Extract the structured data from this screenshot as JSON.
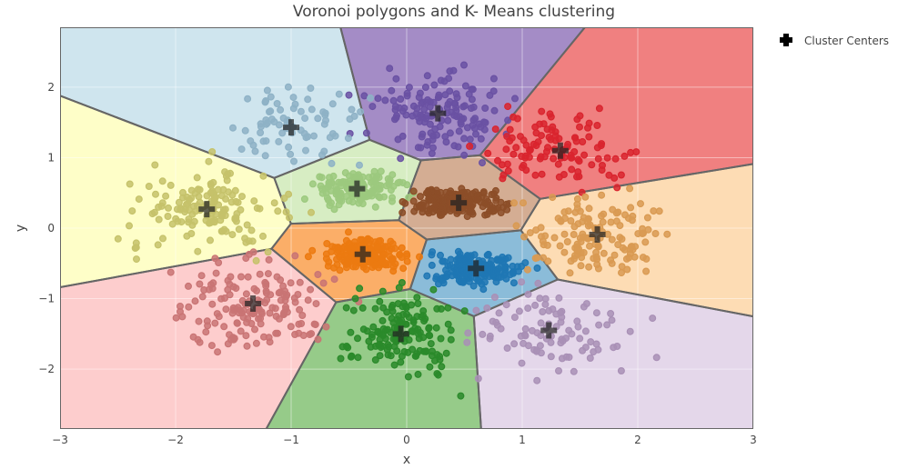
{
  "chart_data": {
    "type": "scatter",
    "title": "Voronoi polygons and K- Means clustering",
    "xlabel": "x",
    "ylabel": "y",
    "xlim": [
      -3,
      3
    ],
    "ylim": [
      -2.85,
      2.85
    ],
    "xticks": [
      -3,
      -2,
      -1,
      0,
      1,
      2,
      3
    ],
    "yticks": [
      -2,
      -1,
      0,
      1,
      2
    ],
    "xtick_labels": [
      "−3",
      "−2",
      "−1",
      "0",
      "1",
      "2",
      "3"
    ],
    "ytick_labels": [
      "−2",
      "−1",
      "0",
      "1",
      "2"
    ],
    "grid": true,
    "legend": {
      "position": "top-right outside",
      "entries": [
        "Cluster Centers"
      ]
    },
    "cluster_centers": {
      "name": "Cluster Centers",
      "marker": "cross",
      "x": [
        0.27,
        1.33,
        -1.0,
        -0.43,
        0.45,
        -1.73,
        1.65,
        -0.38,
        0.6,
        -1.33,
        -0.05,
        1.23
      ],
      "y": [
        1.63,
        1.1,
        1.43,
        0.56,
        0.36,
        0.27,
        -0.09,
        -0.37,
        -0.57,
        -1.07,
        -1.5,
        -1.45
      ]
    },
    "clusters": [
      {
        "center": [
          0.27,
          1.63
        ],
        "fill": "#a48cc6",
        "point": "#6a51a3",
        "spread": [
          0.42,
          0.4
        ],
        "n": 140
      },
      {
        "center": [
          1.33,
          1.1
        ],
        "fill": "#f08080",
        "point": "#d9242e",
        "spread": [
          0.45,
          0.35
        ],
        "n": 110
      },
      {
        "center": [
          -1.0,
          1.43
        ],
        "fill": "#cfe5ee",
        "point": "#8eb2c6",
        "spread": [
          0.4,
          0.38
        ],
        "n": 75
      },
      {
        "center": [
          -0.43,
          0.56
        ],
        "fill": "#d7edc3",
        "point": "#9cc97e",
        "spread": [
          0.28,
          0.18
        ],
        "n": 140
      },
      {
        "center": [
          0.45,
          0.36
        ],
        "fill": "#d4ad93",
        "point": "#8c4e28",
        "spread": [
          0.28,
          0.15
        ],
        "n": 190
      },
      {
        "center": [
          -1.73,
          0.27
        ],
        "fill": "#fefec8",
        "point": "#c5c26a",
        "spread": [
          0.5,
          0.4
        ],
        "n": 150
      },
      {
        "center": [
          1.65,
          -0.09
        ],
        "fill": "#fddcb4",
        "point": "#d99a52",
        "spread": [
          0.42,
          0.38
        ],
        "n": 140
      },
      {
        "center": [
          -0.38,
          -0.37
        ],
        "fill": "#fbae68",
        "point": "#ec7a10",
        "spread": [
          0.25,
          0.16
        ],
        "n": 190
      },
      {
        "center": [
          0.6,
          -0.57
        ],
        "fill": "#8bbcd9",
        "point": "#1f77b4",
        "spread": [
          0.28,
          0.17
        ],
        "n": 170
      },
      {
        "center": [
          -1.33,
          -1.07
        ],
        "fill": "#fdcdcd",
        "point": "#c97474",
        "spread": [
          0.5,
          0.45
        ],
        "n": 160
      },
      {
        "center": [
          -0.05,
          -1.5
        ],
        "fill": "#96cb89",
        "point": "#2a8a2a",
        "spread": [
          0.32,
          0.42
        ],
        "n": 150
      },
      {
        "center": [
          1.23,
          -1.45
        ],
        "fill": "#e4d7ea",
        "point": "#a990b6",
        "spread": [
          0.45,
          0.45
        ],
        "n": 95
      }
    ]
  }
}
